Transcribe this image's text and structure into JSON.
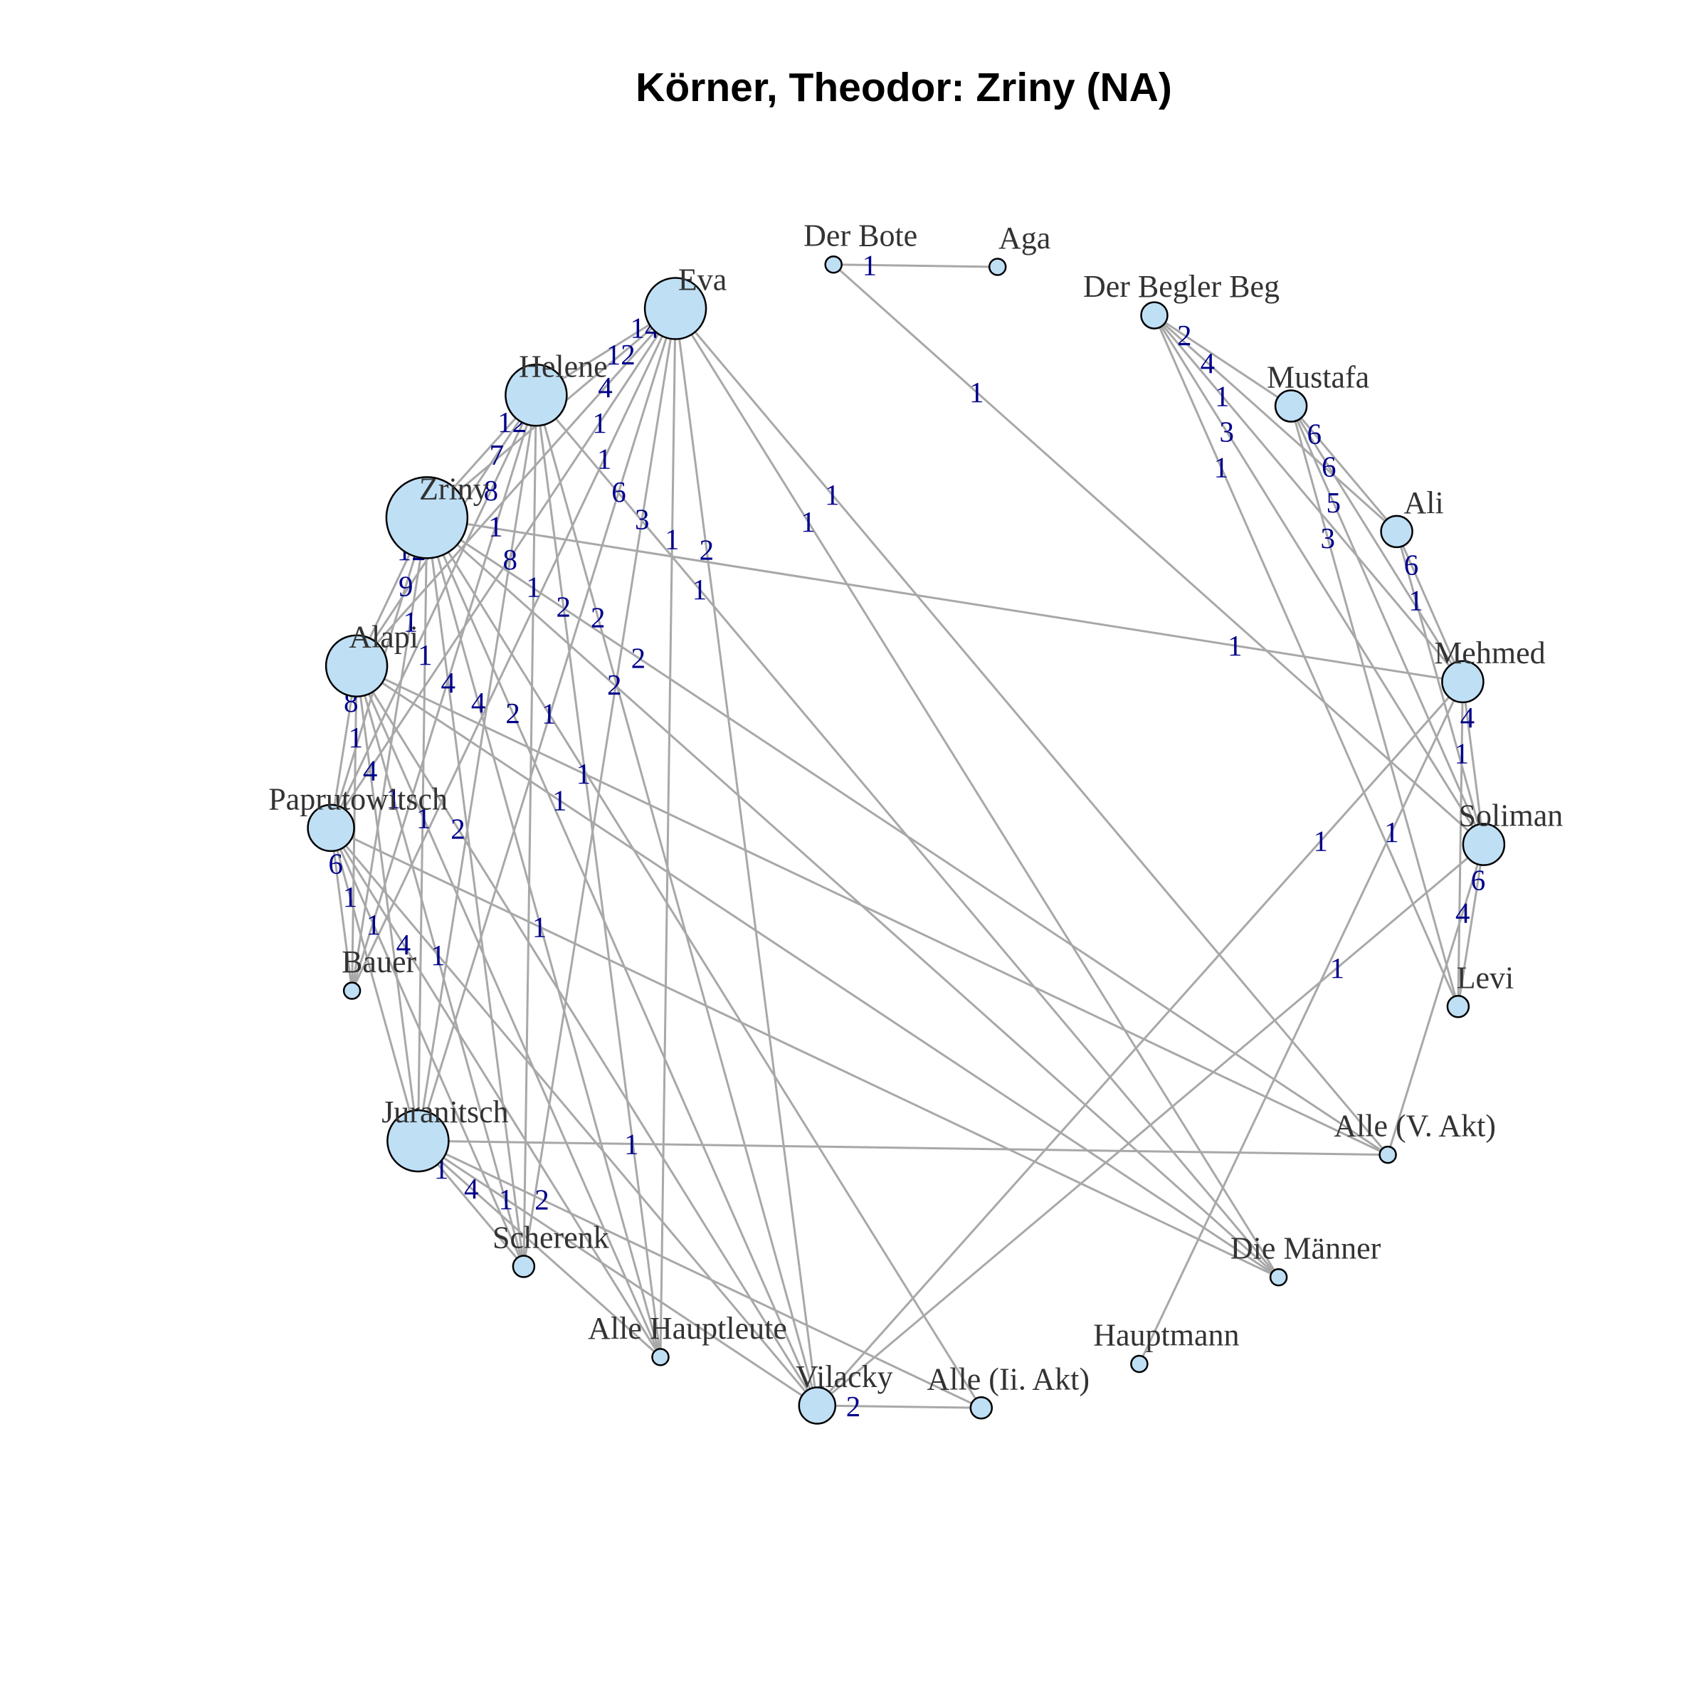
{
  "title": "Körner, Theodor: Zriny (NA)",
  "colors": {
    "node_fill": "#bfdff5",
    "node_stroke": "#000000",
    "edge": "#a8a8a8",
    "edge_label": "#00008b",
    "node_label": "#333333"
  },
  "nodes": [
    {
      "id": "aga",
      "label": "Aga",
      "size": 1
    },
    {
      "id": "begler",
      "label": "Der Begler Beg",
      "size": 3
    },
    {
      "id": "mustafa",
      "label": "Mustafa",
      "size": 4
    },
    {
      "id": "ali",
      "label": "Ali",
      "size": 4
    },
    {
      "id": "mehmed",
      "label": "Mehmed",
      "size": 6
    },
    {
      "id": "soliman",
      "label": "Soliman",
      "size": 6
    },
    {
      "id": "levi",
      "label": "Levi",
      "size": 2
    },
    {
      "id": "alle5",
      "label": "Alle (V. Akt)",
      "size": 1
    },
    {
      "id": "maenner",
      "label": "Die Männer",
      "size": 1
    },
    {
      "id": "hauptmann",
      "label": "Hauptmann",
      "size": 1
    },
    {
      "id": "alle2",
      "label": "Alle (Ii. Akt)",
      "size": 2
    },
    {
      "id": "vilacky",
      "label": "Vilacky",
      "size": 5
    },
    {
      "id": "hauptleute",
      "label": "Alle Hauptleute",
      "size": 1
    },
    {
      "id": "scherenk",
      "label": "Scherenk",
      "size": 2
    },
    {
      "id": "juranitsch",
      "label": "Juranitsch",
      "size": 10
    },
    {
      "id": "bauer",
      "label": "Bauer",
      "size": 1
    },
    {
      "id": "paprutowitsch",
      "label": "Paprutowitsch",
      "size": 7
    },
    {
      "id": "alapi",
      "label": "Alapi",
      "size": 10
    },
    {
      "id": "zriny",
      "label": "Zriny",
      "size": 14
    },
    {
      "id": "helene",
      "label": "Helene",
      "size": 10
    },
    {
      "id": "eva",
      "label": "Eva",
      "size": 10
    },
    {
      "id": "bote",
      "label": "Der Bote",
      "size": 1
    }
  ],
  "edges": [
    {
      "source": "bote",
      "target": "aga",
      "weight": "1"
    },
    {
      "source": "bote",
      "target": "soliman",
      "weight": "1"
    },
    {
      "source": "begler",
      "target": "mustafa",
      "weight": "2"
    },
    {
      "source": "begler",
      "target": "ali",
      "weight": "4"
    },
    {
      "source": "begler",
      "target": "mehmed",
      "weight": "1"
    },
    {
      "source": "begler",
      "target": "soliman",
      "weight": "3"
    },
    {
      "source": "begler",
      "target": "levi",
      "weight": "1"
    },
    {
      "source": "mustafa",
      "target": "ali",
      "weight": "6"
    },
    {
      "source": "mustafa",
      "target": "mehmed",
      "weight": "6"
    },
    {
      "source": "mustafa",
      "target": "soliman",
      "weight": "5"
    },
    {
      "source": "mustafa",
      "target": "levi",
      "weight": "3"
    },
    {
      "source": "ali",
      "target": "mehmed",
      "weight": "6"
    },
    {
      "source": "ali",
      "target": "soliman",
      "weight": "1"
    },
    {
      "source": "mehmed",
      "target": "soliman",
      "weight": "4"
    },
    {
      "source": "mehmed",
      "target": "levi",
      "weight": "1"
    },
    {
      "source": "mehmed",
      "target": "zriny",
      "weight": "1"
    },
    {
      "source": "mehmed",
      "target": "vilacky",
      "weight": "1"
    },
    {
      "source": "mehmed",
      "target": "hauptmann",
      "weight": "1"
    },
    {
      "source": "soliman",
      "target": "levi",
      "weight": "6"
    },
    {
      "source": "soliman",
      "target": "alle5",
      "weight": "4"
    },
    {
      "source": "soliman",
      "target": "vilacky",
      "weight": "1"
    },
    {
      "source": "eva",
      "target": "helene",
      "weight": "14"
    },
    {
      "source": "eva",
      "target": "zriny",
      "weight": "12"
    },
    {
      "source": "eva",
      "target": "alapi",
      "weight": "4"
    },
    {
      "source": "eva",
      "target": "paprutowitsch",
      "weight": "1"
    },
    {
      "source": "eva",
      "target": "bauer",
      "weight": "1"
    },
    {
      "source": "eva",
      "target": "juranitsch",
      "weight": "6"
    },
    {
      "source": "eva",
      "target": "scherenk",
      "weight": "3"
    },
    {
      "source": "eva",
      "target": "hauptleute",
      "weight": "1"
    },
    {
      "source": "eva",
      "target": "vilacky",
      "weight": "2"
    },
    {
      "source": "eva",
      "target": "maenner",
      "weight": "1"
    },
    {
      "source": "eva",
      "target": "alle5",
      "weight": "1"
    },
    {
      "source": "helene",
      "target": "zriny",
      "weight": "12"
    },
    {
      "source": "helene",
      "target": "alapi",
      "weight": "7"
    },
    {
      "source": "helene",
      "target": "paprutowitsch",
      "weight": "8"
    },
    {
      "source": "helene",
      "target": "bauer",
      "weight": "1"
    },
    {
      "source": "helene",
      "target": "juranitsch",
      "weight": "8"
    },
    {
      "source": "helene",
      "target": "scherenk",
      "weight": "1"
    },
    {
      "source": "helene",
      "target": "hauptleute",
      "weight": "2"
    },
    {
      "source": "helene",
      "target": "vilacky",
      "weight": "2"
    },
    {
      "source": "helene",
      "target": "maenner",
      "weight": "1"
    },
    {
      "source": "zriny",
      "target": "alapi",
      "weight": "12"
    },
    {
      "source": "zriny",
      "target": "paprutowitsch",
      "weight": "9"
    },
    {
      "source": "zriny",
      "target": "bauer",
      "weight": "1"
    },
    {
      "source": "zriny",
      "target": "juranitsch",
      "weight": "1"
    },
    {
      "source": "zriny",
      "target": "scherenk",
      "weight": "4"
    },
    {
      "source": "zriny",
      "target": "hauptleute",
      "weight": "4"
    },
    {
      "source": "zriny",
      "target": "vilacky",
      "weight": "2"
    },
    {
      "source": "zriny",
      "target": "alle2",
      "weight": "1"
    },
    {
      "source": "zriny",
      "target": "maenner",
      "weight": "2"
    },
    {
      "source": "zriny",
      "target": "alle5",
      "weight": "2"
    },
    {
      "source": "alapi",
      "target": "paprutowitsch",
      "weight": "8"
    },
    {
      "source": "alapi",
      "target": "bauer",
      "weight": "1"
    },
    {
      "source": "alapi",
      "target": "juranitsch",
      "weight": "4"
    },
    {
      "source": "alapi",
      "target": "scherenk",
      "weight": "1"
    },
    {
      "source": "alapi",
      "target": "hauptleute",
      "weight": "1"
    },
    {
      "source": "alapi",
      "target": "vilacky",
      "weight": "2"
    },
    {
      "source": "alapi",
      "target": "maenner",
      "weight": "1"
    },
    {
      "source": "alapi",
      "target": "alle5",
      "weight": "1"
    },
    {
      "source": "paprutowitsch",
      "target": "bauer",
      "weight": "6"
    },
    {
      "source": "paprutowitsch",
      "target": "juranitsch",
      "weight": "1"
    },
    {
      "source": "paprutowitsch",
      "target": "scherenk",
      "weight": "1"
    },
    {
      "source": "paprutowitsch",
      "target": "hauptleute",
      "weight": "4"
    },
    {
      "source": "paprutowitsch",
      "target": "vilacky",
      "weight": "1"
    },
    {
      "source": "paprutowitsch",
      "target": "maenner",
      "weight": "1"
    },
    {
      "source": "juranitsch",
      "target": "scherenk",
      "weight": "1"
    },
    {
      "source": "juranitsch",
      "target": "hauptleute",
      "weight": "4"
    },
    {
      "source": "juranitsch",
      "target": "vilacky",
      "weight": "1"
    },
    {
      "source": "juranitsch",
      "target": "alle2",
      "weight": "2"
    },
    {
      "source": "juranitsch",
      "target": "alle5",
      "weight": "1"
    },
    {
      "source": "vilacky",
      "target": "alle2",
      "weight": "2"
    }
  ]
}
